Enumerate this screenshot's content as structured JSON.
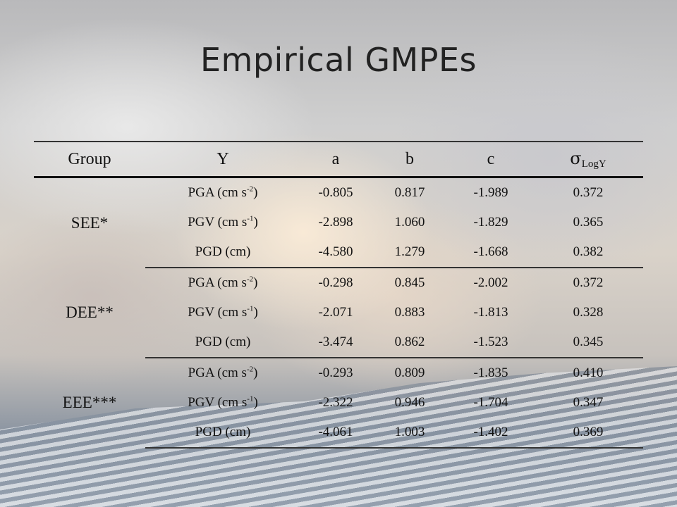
{
  "title": "Empirical GMPEs",
  "headers": {
    "group": "Group",
    "y": "Y",
    "a": "a",
    "b": "b",
    "c": "c",
    "sigma_symbol": "σ",
    "sigma_sub": "LogY"
  },
  "groups": [
    {
      "name": "SEE*",
      "rows": [
        {
          "y_base": "PGA (cm s",
          "y_exp": "-2",
          "y_tail": ")",
          "a": "-0.805",
          "b": "0.817",
          "c": "-1.989",
          "sigma": "0.372"
        },
        {
          "y_base": "PGV (cm s",
          "y_exp": "-1",
          "y_tail": ")",
          "a": "-2.898",
          "b": "1.060",
          "c": "-1.829",
          "sigma": "0.365"
        },
        {
          "y_base": "PGD (cm)",
          "y_exp": "",
          "y_tail": "",
          "a": "-4.580",
          "b": "1.279",
          "c": "-1.668",
          "sigma": "0.382"
        }
      ]
    },
    {
      "name": "DEE**",
      "rows": [
        {
          "y_base": "PGA (cm s",
          "y_exp": "-2",
          "y_tail": ")",
          "a": "-0.298",
          "b": "0.845",
          "c": "-2.002",
          "sigma": "0.372"
        },
        {
          "y_base": "PGV (cm s",
          "y_exp": "-1",
          "y_tail": ")",
          "a": "-2.071",
          "b": "0.883",
          "c": "-1.813",
          "sigma": "0.328"
        },
        {
          "y_base": "PGD (cm)",
          "y_exp": "",
          "y_tail": "",
          "a": "-3.474",
          "b": "0.862",
          "c": "-1.523",
          "sigma": "0.345"
        }
      ]
    },
    {
      "name": "EEE***",
      "rows": [
        {
          "y_base": "PGA (cm s",
          "y_exp": "-2",
          "y_tail": ")",
          "a": "-0.293",
          "b": "0.809",
          "c": "-1.835",
          "sigma": "0.410"
        },
        {
          "y_base": "PGV (cm s",
          "y_exp": "-1",
          "y_tail": ")",
          "a": "-2.322",
          "b": "0.946",
          "c": "-1.704",
          "sigma": "0.347"
        },
        {
          "y_base": "PGD (cm)",
          "y_exp": "",
          "y_tail": "",
          "a": "-4.061",
          "b": "1.003",
          "c": "-1.402",
          "sigma": "0.369"
        }
      ]
    }
  ]
}
